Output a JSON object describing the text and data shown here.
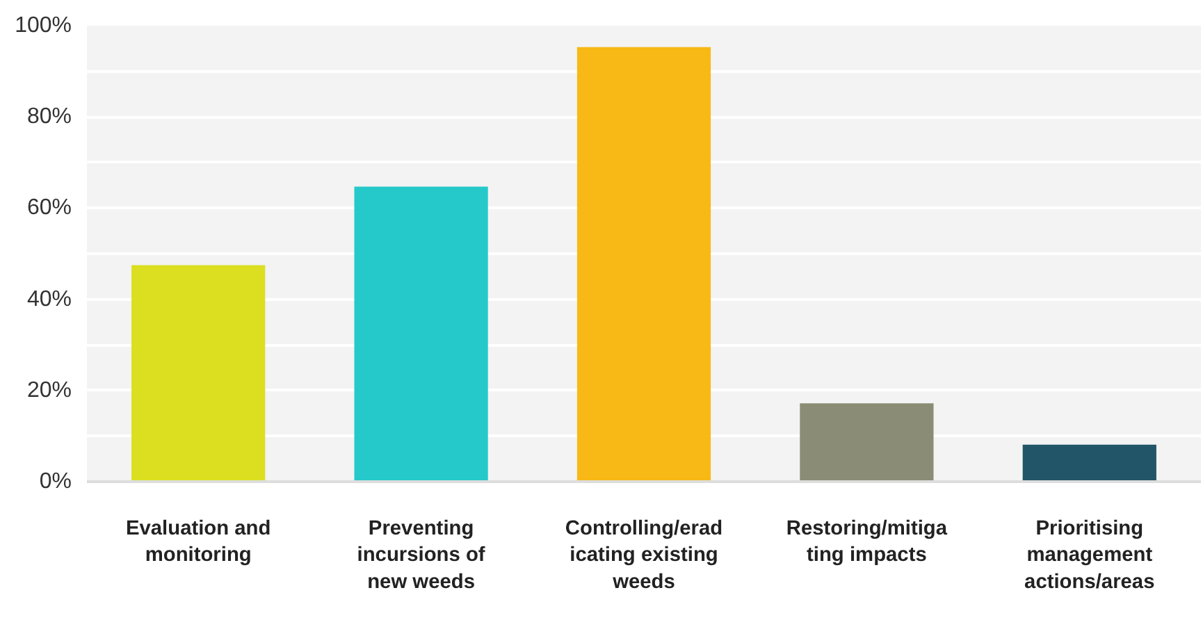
{
  "chart_data": {
    "type": "bar",
    "categories": [
      "Evaluation and monitoring",
      "Preventing incursions of new weeds",
      "Controlling/eradicating existing weeds",
      "Restoring/mitigating impacts",
      "Prioritising management actions/areas"
    ],
    "values": [
      47.5,
      64.7,
      95.3,
      17.2,
      8.1
    ],
    "colors": [
      "#dbdf1f",
      "#26c9ca",
      "#f8b916",
      "#8b8c76",
      "#225567"
    ],
    "ylim": [
      0,
      100
    ],
    "yticks": [
      {
        "value": 0,
        "label": "0%"
      },
      {
        "value": 10,
        "label": null
      },
      {
        "value": 20,
        "label": "20%"
      },
      {
        "value": 30,
        "label": null
      },
      {
        "value": 40,
        "label": "40%"
      },
      {
        "value": 50,
        "label": null
      },
      {
        "value": 60,
        "label": "60%"
      },
      {
        "value": 70,
        "label": null
      },
      {
        "value": 80,
        "label": "80%"
      },
      {
        "value": 90,
        "label": null
      },
      {
        "value": 100,
        "label": "100%"
      }
    ],
    "grid": "y"
  }
}
